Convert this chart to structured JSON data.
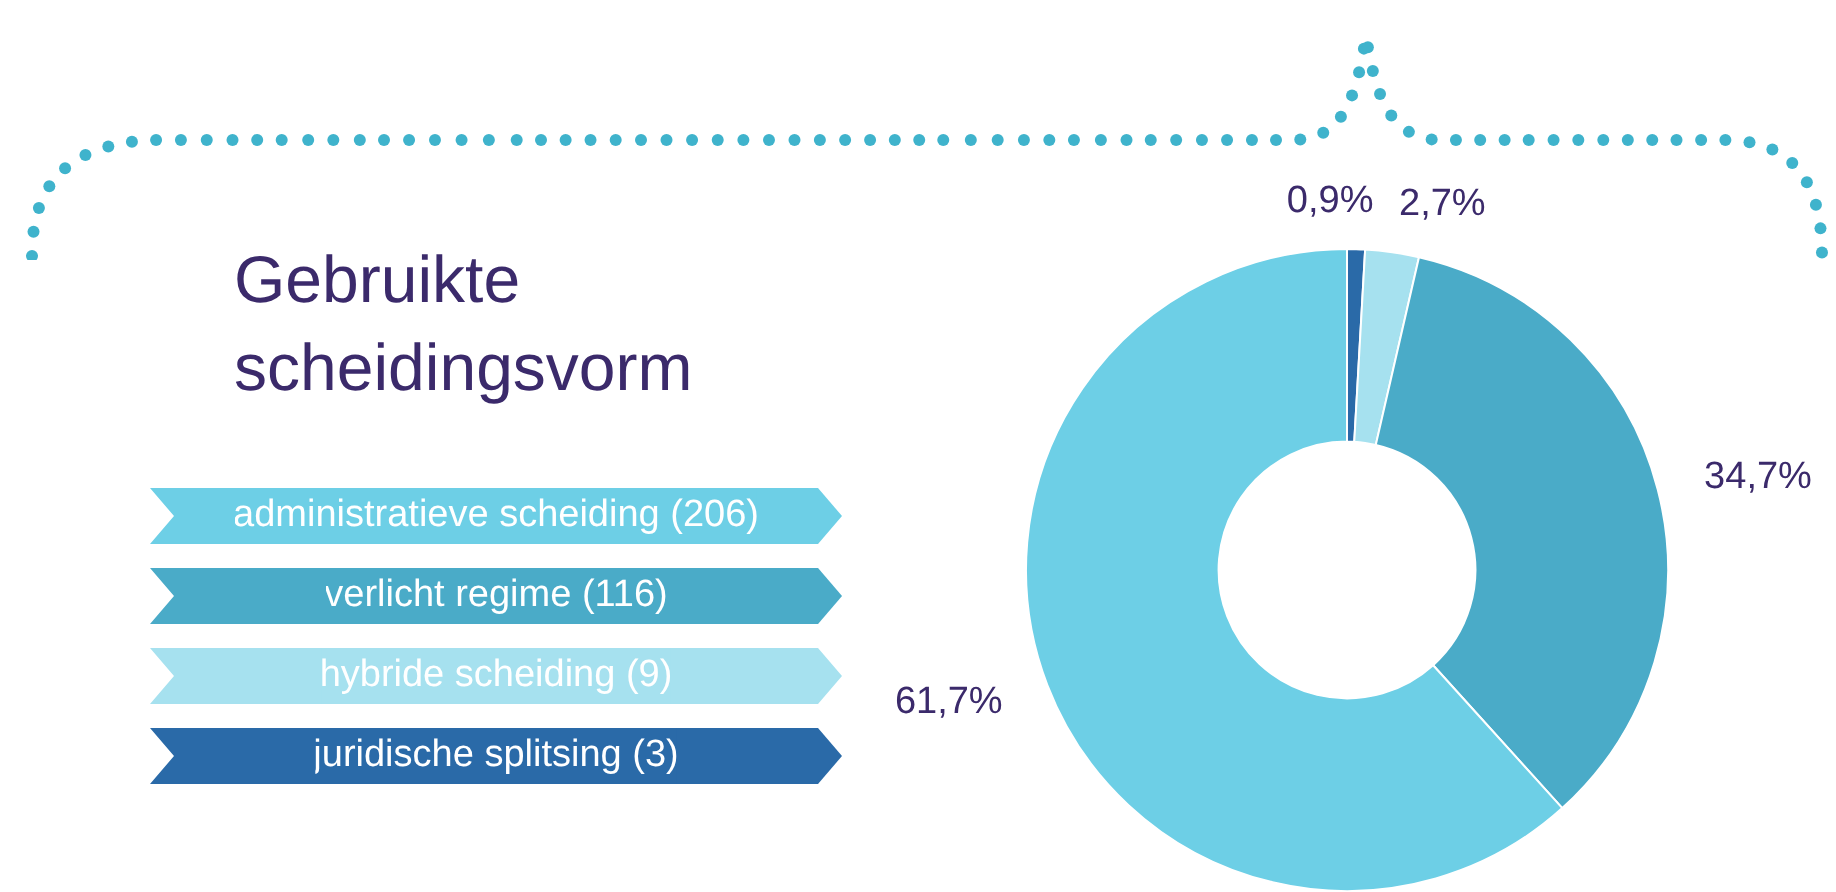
{
  "chart_data": {
    "type": "donut",
    "title": "Gebruikte scheidingsvorm",
    "categories": [
      "administratieve scheiding (206)",
      "verlicht regime (116)",
      "hybride scheiding (9)",
      "juridische splitsing (3)"
    ],
    "values": [
      61.7,
      34.7,
      2.7,
      0.9
    ],
    "colors": [
      "#6dcfe6",
      "#4aabc8",
      "#a6e1ef",
      "#2a6aa8"
    ],
    "value_labels": [
      "61,7%",
      "34,7%",
      "2,7%",
      "0,9%"
    ],
    "legend": "left"
  }
}
